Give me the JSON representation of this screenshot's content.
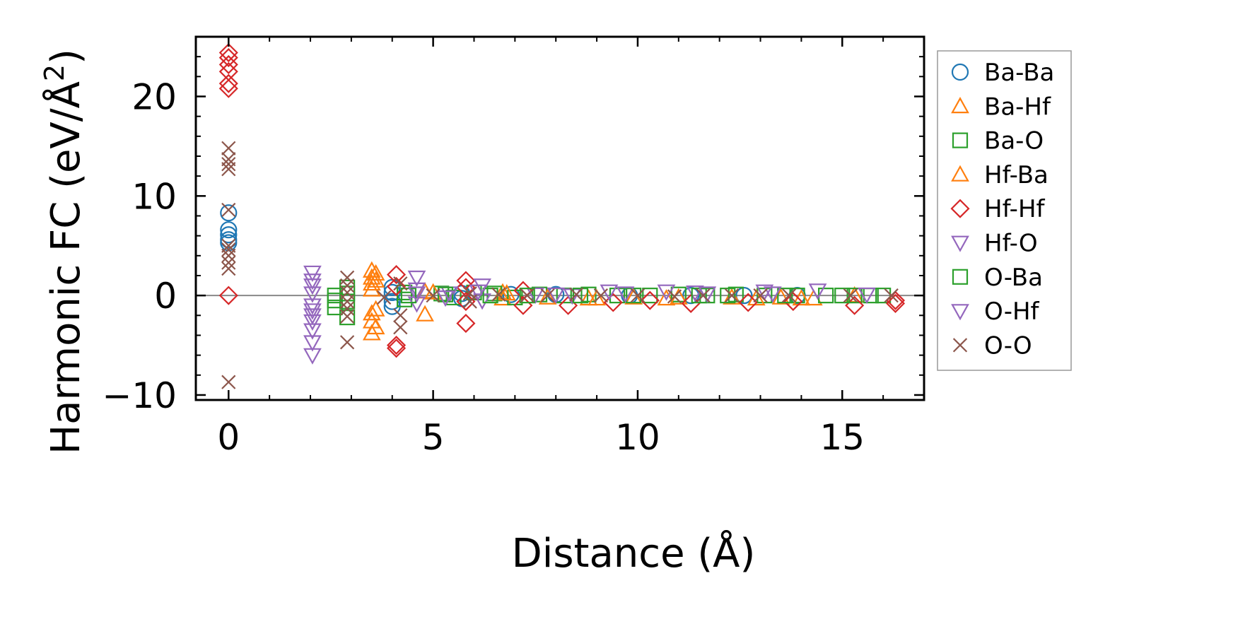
{
  "chart_data": {
    "type": "scatter",
    "title": "",
    "xlabel": "Distance (Å)",
    "ylabel_main": "Harmonic FC (eV/Å",
    "ylabel_sup": "2",
    "ylabel_close": ")",
    "xlim": [
      -0.8,
      17.0
    ],
    "ylim": [
      -10.5,
      26.0
    ],
    "xticks": [
      0,
      5,
      10,
      15
    ],
    "xtick_labels": [
      "0",
      "5",
      "10",
      "15"
    ],
    "yticks": [
      -10,
      0,
      10,
      20
    ],
    "ytick_labels": [
      "−10",
      "0",
      "10",
      "20"
    ],
    "x_minor_step": 1,
    "y_minor_step": 2,
    "zero_line": true,
    "legend_position": "outside-right",
    "series": [
      {
        "name": "Ba-Ba",
        "marker": "circle",
        "color": "#1f77b4",
        "points": [
          [
            0,
            8.3
          ],
          [
            0,
            6.6
          ],
          [
            0,
            6.1
          ],
          [
            0,
            5.6
          ],
          [
            0,
            5.3
          ],
          [
            4.0,
            0.8
          ],
          [
            4.0,
            0.3
          ],
          [
            4.0,
            -0.6
          ],
          [
            4.0,
            -1.1
          ],
          [
            5.7,
            0.2
          ],
          [
            5.7,
            -0.3
          ],
          [
            6.9,
            0.1
          ],
          [
            8.0,
            0.1
          ],
          [
            9.8,
            0.0
          ],
          [
            11.3,
            0.0
          ],
          [
            12.6,
            0.0
          ],
          [
            13.9,
            0.0
          ]
        ]
      },
      {
        "name": "Ba-Hf",
        "marker": "triangle-up",
        "color": "#ff7f0e",
        "points": [
          [
            3.5,
            2.5
          ],
          [
            3.5,
            1.8
          ],
          [
            3.5,
            1.2
          ],
          [
            3.5,
            0.6
          ],
          [
            3.5,
            -1.8
          ],
          [
            3.5,
            -2.6
          ],
          [
            3.5,
            -3.8
          ],
          [
            4.8,
            -1.9
          ],
          [
            4.8,
            0.4
          ],
          [
            6.7,
            -0.3
          ],
          [
            6.7,
            0.3
          ],
          [
            8.8,
            -0.3
          ],
          [
            9.9,
            -0.2
          ],
          [
            10.7,
            -0.3
          ],
          [
            12.3,
            -0.2
          ],
          [
            13.5,
            -0.2
          ],
          [
            14.3,
            -0.3
          ],
          [
            15.3,
            0.0
          ]
        ]
      },
      {
        "name": "Ba-O",
        "marker": "square",
        "color": "#2ca02c",
        "points": [
          [
            2.6,
            0.0
          ],
          [
            2.6,
            -1.2
          ],
          [
            2.9,
            0.8
          ],
          [
            2.9,
            -0.6
          ],
          [
            2.9,
            -2.2
          ],
          [
            4.3,
            0.3
          ],
          [
            4.3,
            -0.4
          ],
          [
            5.2,
            0.2
          ],
          [
            5.5,
            -0.2
          ],
          [
            6.0,
            0.3
          ],
          [
            6.5,
            0.2
          ],
          [
            7.0,
            -0.2
          ],
          [
            7.6,
            0.1
          ],
          [
            8.2,
            0.0
          ],
          [
            8.8,
            0.1
          ],
          [
            9.5,
            0.0
          ],
          [
            10.3,
            0.0
          ],
          [
            11.0,
            0.1
          ],
          [
            11.7,
            0.0
          ],
          [
            12.4,
            0.1
          ],
          [
            13.1,
            0.0
          ],
          [
            13.9,
            0.0
          ],
          [
            14.6,
            0.0
          ],
          [
            15.3,
            0.0
          ],
          [
            16.0,
            0.0
          ]
        ]
      },
      {
        "name": "Hf-Ba",
        "marker": "triangle-up",
        "color": "#ff7f0e",
        "points": [
          [
            3.6,
            2.2
          ],
          [
            3.6,
            1.5
          ],
          [
            3.6,
            -1.4
          ],
          [
            3.6,
            -3.2
          ],
          [
            5.0,
            0.3
          ],
          [
            6.8,
            0.2
          ],
          [
            7.8,
            -0.2
          ],
          [
            9.0,
            -0.3
          ],
          [
            11.0,
            -0.2
          ],
          [
            12.9,
            -0.3
          ],
          [
            14.0,
            -0.3
          ]
        ]
      },
      {
        "name": "Hf-Hf",
        "marker": "diamond",
        "color": "#d62728",
        "points": [
          [
            0,
            24.4
          ],
          [
            0,
            23.9
          ],
          [
            0,
            23.2
          ],
          [
            0,
            22.5
          ],
          [
            0,
            21.3
          ],
          [
            0,
            20.8
          ],
          [
            0,
            0.0
          ],
          [
            4.1,
            2.1
          ],
          [
            4.1,
            0.9
          ],
          [
            4.1,
            -5.0
          ],
          [
            4.1,
            -5.3
          ],
          [
            5.8,
            1.5
          ],
          [
            5.8,
            0.8
          ],
          [
            5.8,
            -0.6
          ],
          [
            5.8,
            -2.8
          ],
          [
            7.2,
            0.5
          ],
          [
            7.2,
            -1.0
          ],
          [
            8.3,
            -1.0
          ],
          [
            9.4,
            -0.7
          ],
          [
            10.3,
            -0.5
          ],
          [
            11.3,
            -0.8
          ],
          [
            12.7,
            -0.7
          ],
          [
            13.8,
            -0.6
          ],
          [
            15.3,
            -1.0
          ],
          [
            16.3,
            -0.5
          ],
          [
            16.3,
            -0.8
          ]
        ]
      },
      {
        "name": "Hf-O",
        "marker": "triangle-down",
        "color": "#9467bd",
        "points": [
          [
            2.05,
            2.3
          ],
          [
            2.05,
            1.5
          ],
          [
            2.05,
            0.2
          ],
          [
            2.05,
            -1.0
          ],
          [
            2.05,
            -2.0
          ],
          [
            2.05,
            -3.5
          ],
          [
            2.05,
            -4.7
          ],
          [
            2.05,
            -6.0
          ],
          [
            4.6,
            1.8
          ],
          [
            4.6,
            0.6
          ],
          [
            4.6,
            -0.8
          ],
          [
            5.4,
            0.2
          ],
          [
            6.2,
            1.0
          ],
          [
            6.2,
            -0.5
          ],
          [
            7.5,
            0.1
          ],
          [
            8.4,
            0.0
          ],
          [
            9.3,
            0.4
          ],
          [
            10.7,
            0.4
          ],
          [
            11.4,
            0.3
          ],
          [
            13.1,
            0.4
          ],
          [
            14.4,
            0.5
          ]
        ]
      },
      {
        "name": "O-Ba",
        "marker": "square",
        "color": "#2ca02c",
        "points": [
          [
            2.6,
            -0.5
          ],
          [
            2.9,
            0.2
          ],
          [
            4.4,
            0.0
          ],
          [
            5.3,
            0.1
          ],
          [
            6.4,
            0.0
          ],
          [
            7.3,
            0.0
          ],
          [
            8.6,
            0.0
          ],
          [
            9.9,
            0.0
          ],
          [
            11.5,
            0.0
          ],
          [
            12.2,
            0.0
          ],
          [
            13.6,
            0.0
          ],
          [
            15.0,
            0.0
          ],
          [
            15.7,
            0.0
          ]
        ]
      },
      {
        "name": "O-Hf",
        "marker": "triangle-down",
        "color": "#9467bd",
        "points": [
          [
            2.05,
            1.0
          ],
          [
            2.05,
            -1.5
          ],
          [
            2.05,
            -2.6
          ],
          [
            4.6,
            0.2
          ],
          [
            5.3,
            -0.2
          ],
          [
            6.1,
            0.4
          ],
          [
            8.0,
            0.1
          ],
          [
            9.7,
            0.2
          ],
          [
            11.7,
            0.2
          ],
          [
            13.3,
            0.2
          ],
          [
            15.6,
            0.1
          ]
        ]
      },
      {
        "name": "O-O",
        "marker": "x",
        "color": "#8c564b",
        "points": [
          [
            0,
            14.8
          ],
          [
            0,
            13.7
          ],
          [
            0,
            13.2
          ],
          [
            0,
            12.7
          ],
          [
            0,
            8.6
          ],
          [
            0,
            5.0
          ],
          [
            0,
            4.6
          ],
          [
            0,
            4.0
          ],
          [
            0,
            3.3
          ],
          [
            0,
            2.7
          ],
          [
            0,
            -8.7
          ],
          [
            2.9,
            1.8
          ],
          [
            2.9,
            1.0
          ],
          [
            2.9,
            0.3
          ],
          [
            2.9,
            -0.6
          ],
          [
            2.9,
            -1.3
          ],
          [
            2.9,
            -2.1
          ],
          [
            2.9,
            -4.7
          ],
          [
            3.8,
            -0.2
          ],
          [
            4.2,
            1.2
          ],
          [
            4.2,
            -2.0
          ],
          [
            4.2,
            -3.2
          ],
          [
            5.0,
            0.0
          ],
          [
            5.9,
            0.2
          ],
          [
            5.9,
            -0.6
          ],
          [
            6.6,
            0.1
          ],
          [
            7.3,
            0.0
          ],
          [
            7.8,
            0.0
          ],
          [
            8.5,
            0.1
          ],
          [
            9.1,
            0.0
          ],
          [
            10.0,
            0.0
          ],
          [
            10.9,
            -0.1
          ],
          [
            11.6,
            0.0
          ],
          [
            12.3,
            0.0
          ],
          [
            13.0,
            0.0
          ],
          [
            13.7,
            0.0
          ],
          [
            15.2,
            0.0
          ],
          [
            16.2,
            0.0
          ]
        ]
      }
    ]
  }
}
